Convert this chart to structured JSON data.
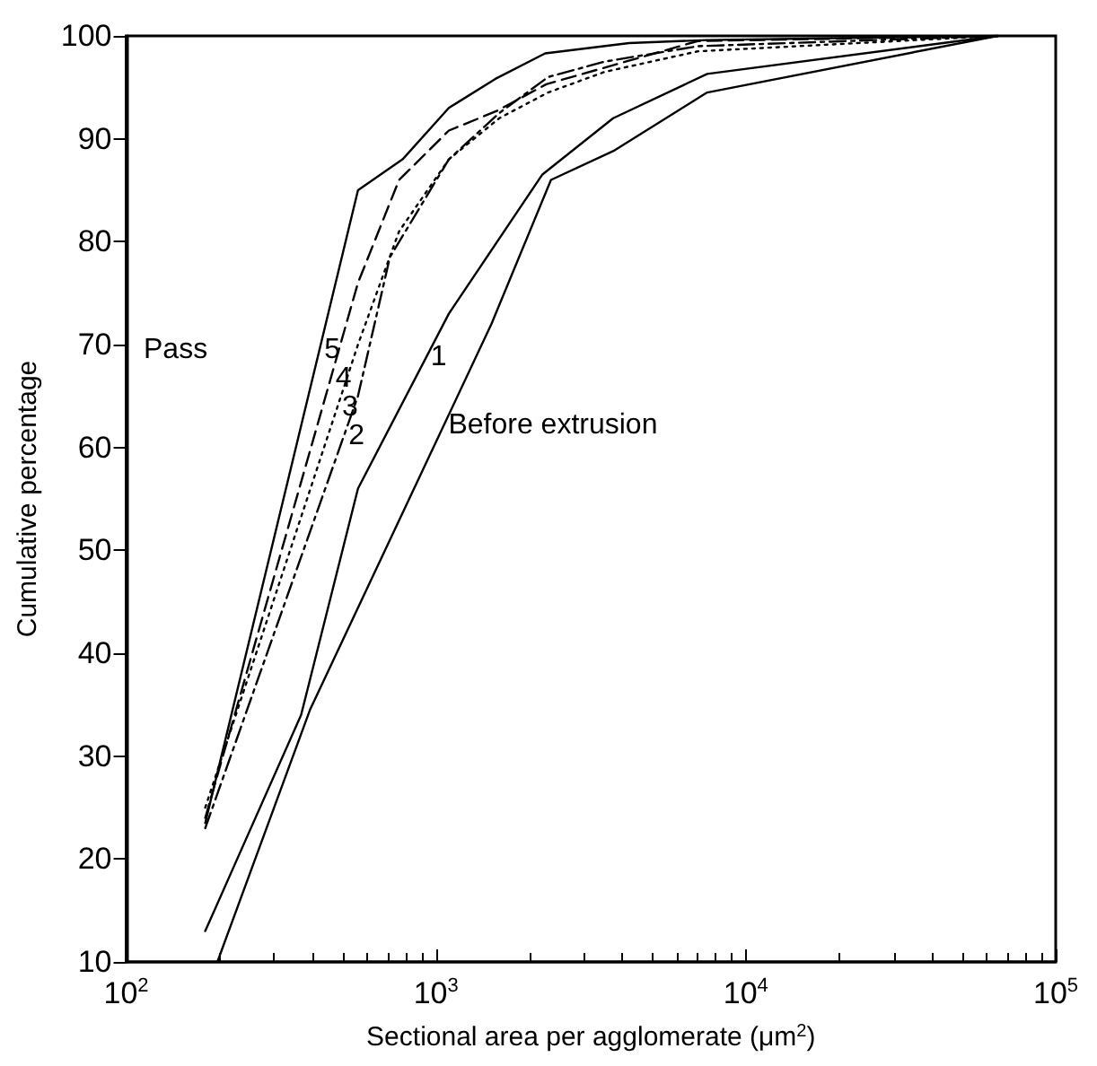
{
  "chart_data": {
    "type": "line",
    "xlabel": "Sectional area per agglomerate (μm$^{2}$)",
    "ylabel": "Cumulative percentage",
    "log": "x",
    "xlim": [
      100,
      100000
    ],
    "xticks": [
      {
        "value": 100,
        "label": "10$^{2}$"
      },
      {
        "value": 1000,
        "label": "10$^{3}$"
      },
      {
        "value": 10000,
        "label": "10$^{4}$"
      },
      {
        "value": 100000,
        "label": "10$^{5}$"
      }
    ],
    "ylim": [
      10,
      100
    ],
    "yticks": [
      10,
      20,
      30,
      40,
      50,
      60,
      70,
      80,
      90,
      100
    ],
    "grid": false,
    "legend": false,
    "marker": "none",
    "annotations": [
      "Pass"
    ],
    "series": [
      {
        "name": "5",
        "color": "#000000",
        "line_style": "solid",
        "x": [
          180,
          560,
          780,
          1100,
          1550,
          2250,
          4200,
          7500,
          65000
        ],
        "values": [
          23.5,
          85,
          88,
          93,
          95.8,
          98.3,
          99.3,
          99.6,
          100
        ]
      },
      {
        "name": "4",
        "color": "#000000",
        "line_style": "dashed",
        "x": [
          180,
          560,
          760,
          1100,
          1570,
          2270,
          7000,
          65000
        ],
        "values": [
          24,
          76,
          86,
          90.8,
          92.7,
          95.3,
          99.5,
          100
        ]
      },
      {
        "name": "3",
        "color": "#000000",
        "line_style": "dotted",
        "x": [
          180,
          560,
          760,
          1100,
          1600,
          2300,
          3500,
          7000,
          65000
        ],
        "values": [
          25,
          70,
          81,
          88,
          92,
          94.5,
          96.5,
          98.5,
          100
        ]
      },
      {
        "name": "2",
        "color": "#000000",
        "line_style": "dashdot",
        "x": [
          180,
          560,
          710,
          1100,
          1600,
          2300,
          3500,
          7000,
          65000
        ],
        "values": [
          23,
          65,
          78.5,
          88,
          92.5,
          96,
          97.5,
          99,
          100
        ]
      },
      {
        "name": "1",
        "color": "#000000",
        "line_style": "solid",
        "x": [
          180,
          367,
          560,
          1100,
          2200,
          3730,
          7500,
          65000
        ],
        "values": [
          13,
          34,
          56,
          73,
          86.5,
          92,
          96.3,
          100
        ]
      },
      {
        "name": "Before extrusion",
        "color": "#000000",
        "line_style": "solid",
        "x": [
          197,
          392,
          1510,
          2350,
          3730,
          7500,
          65000
        ],
        "values": [
          10,
          34.5,
          72,
          86,
          88.8,
          94.5,
          100
        ]
      }
    ]
  }
}
